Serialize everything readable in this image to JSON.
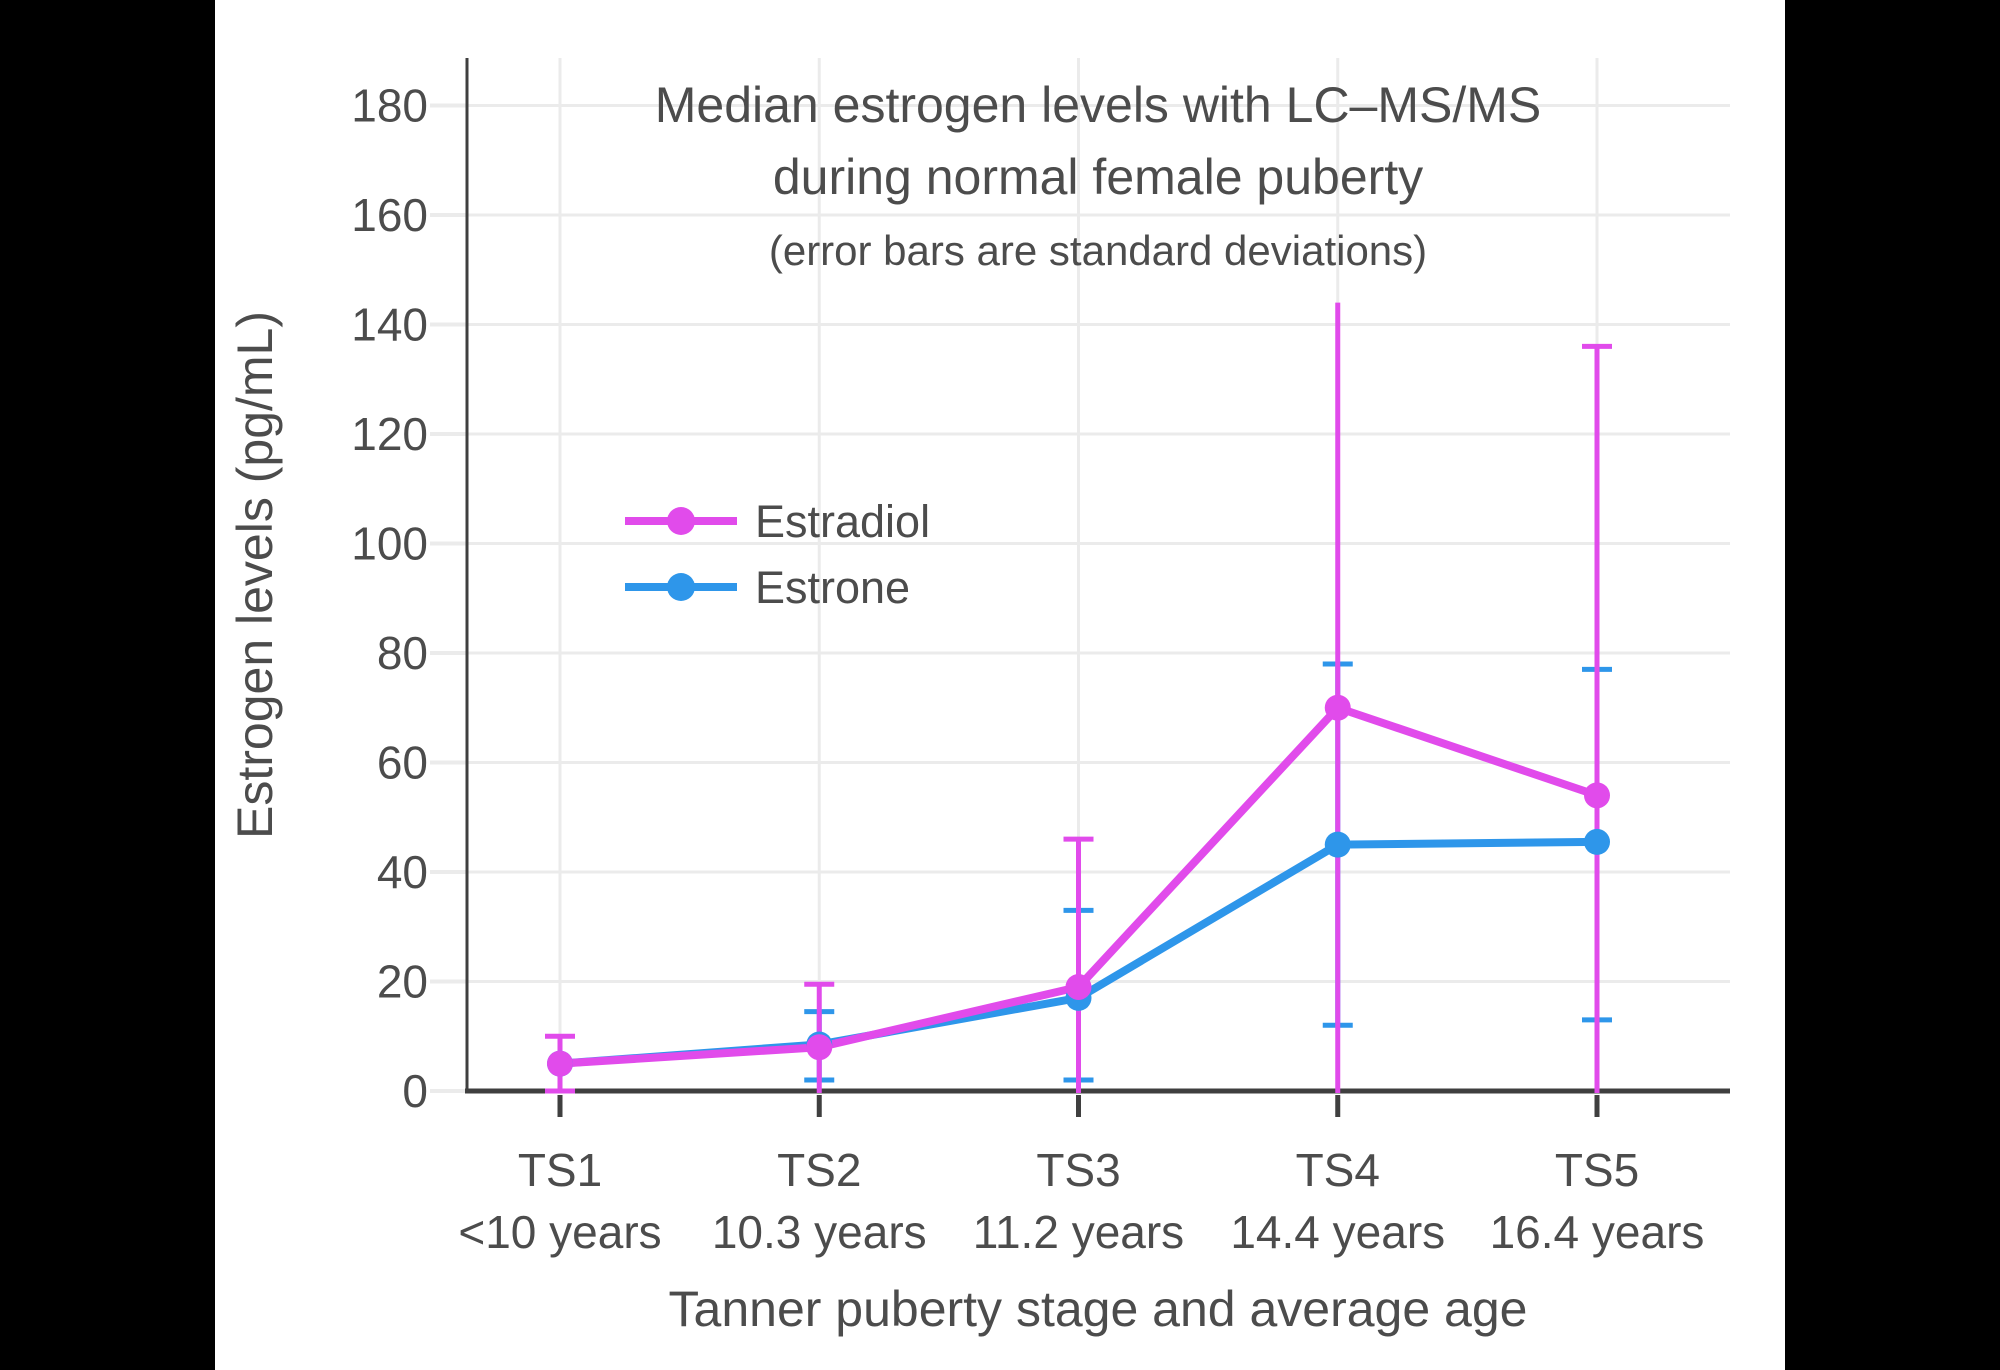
{
  "header": {
    "title_line1": "Median estrogen levels with LC–MS/MS",
    "title_line2": "during normal female puberty",
    "subtitle": "(error bars are standard deviations)"
  },
  "colors": {
    "estradiol": "#E14BEB",
    "estrone": "#2E96EA",
    "grid": "#EBEBEB",
    "axis": "#3F3F3F",
    "text": "#4C4C4C",
    "canvas": "#FFFFFF",
    "frame": "#000000"
  },
  "chart_data": {
    "type": "line",
    "title": "Median estrogen levels with LC–MS/MS during normal female puberty",
    "subtitle": "(error bars are standard deviations)",
    "xlabel": "Tanner puberty stage and average age",
    "ylabel": "Estrogen levels (pg/mL)",
    "ylim": [
      0,
      190
    ],
    "grid": true,
    "legend_position": "upper-left-inside",
    "y_ticks": [
      0,
      20,
      40,
      60,
      80,
      100,
      120,
      140,
      160,
      180
    ],
    "categories": [
      "TS1",
      "TS2",
      "TS3",
      "TS4",
      "TS5"
    ],
    "category_ages": [
      "<10 years",
      "10.3 years",
      "11.2 years",
      "14.4 years",
      "16.4 years"
    ],
    "series": [
      {
        "name": "Estradiol",
        "color": "#E14BEB",
        "values": [
          5,
          8,
          19,
          70,
          54
        ],
        "error_upper": [
          10,
          19.5,
          46,
          144,
          136
        ],
        "error_lower": [
          0,
          -3.5,
          -8,
          -4,
          -28
        ],
        "upper_caps": [
          true,
          true,
          true,
          false,
          true
        ],
        "lower_caps": [
          true,
          false,
          false,
          false,
          false
        ]
      },
      {
        "name": "Estrone",
        "color": "#2E96EA",
        "values": [
          5,
          8.5,
          17,
          45,
          45.5
        ],
        "error_upper": [
          null,
          14.5,
          33,
          78,
          77
        ],
        "error_lower": [
          null,
          2,
          2,
          12,
          13
        ],
        "upper_caps": [
          false,
          true,
          true,
          true,
          true
        ],
        "lower_caps": [
          false,
          true,
          true,
          true,
          true
        ]
      }
    ]
  }
}
